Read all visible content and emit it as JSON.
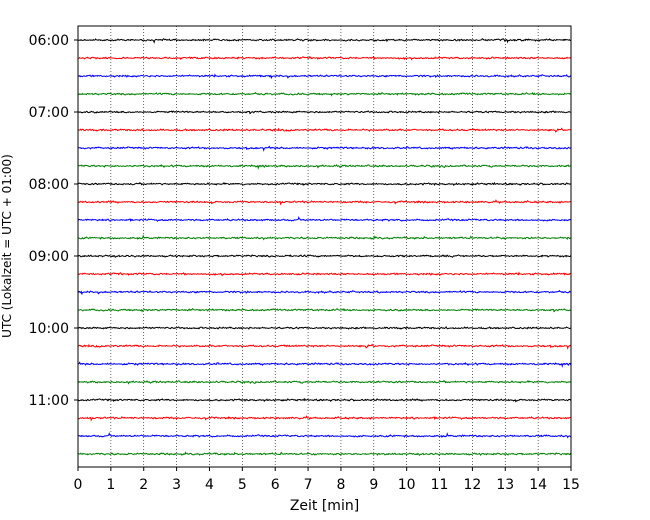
{
  "chart_data": {
    "type": "line",
    "title": "",
    "xlabel": "Zeit  [min]",
    "ylabel": "UTC (Lokalzeit = UTC + 01:00)",
    "xlim": [
      0,
      15
    ],
    "x_ticks": [
      "0",
      "1",
      "2",
      "3",
      "4",
      "5",
      "6",
      "7",
      "8",
      "9",
      "10",
      "11",
      "12",
      "13",
      "14",
      "15"
    ],
    "y_ticks": [
      "06:00",
      "07:00",
      "08:00",
      "09:00",
      "10:00",
      "11:00"
    ],
    "grid": "vertical dotted at each minute",
    "legend": "none",
    "trace_interval_min": 15,
    "trace_colors": [
      "#000000",
      "#ff0000",
      "#0000ff",
      "#008000"
    ],
    "traces": [
      {
        "start": "06:00",
        "color": "#000000"
      },
      {
        "start": "06:15",
        "color": "#ff0000"
      },
      {
        "start": "06:30",
        "color": "#0000ff"
      },
      {
        "start": "06:45",
        "color": "#008000"
      },
      {
        "start": "07:00",
        "color": "#000000"
      },
      {
        "start": "07:15",
        "color": "#ff0000"
      },
      {
        "start": "07:30",
        "color": "#0000ff"
      },
      {
        "start": "07:45",
        "color": "#008000"
      },
      {
        "start": "08:00",
        "color": "#000000"
      },
      {
        "start": "08:15",
        "color": "#ff0000"
      },
      {
        "start": "08:30",
        "color": "#0000ff"
      },
      {
        "start": "08:45",
        "color": "#008000"
      },
      {
        "start": "09:00",
        "color": "#000000"
      },
      {
        "start": "09:15",
        "color": "#ff0000"
      },
      {
        "start": "09:30",
        "color": "#0000ff"
      },
      {
        "start": "09:45",
        "color": "#008000"
      },
      {
        "start": "10:00",
        "color": "#000000"
      },
      {
        "start": "10:15",
        "color": "#ff0000"
      },
      {
        "start": "10:30",
        "color": "#0000ff"
      },
      {
        "start": "10:45",
        "color": "#008000"
      },
      {
        "start": "11:00",
        "color": "#000000"
      },
      {
        "start": "11:15",
        "color": "#ff0000"
      },
      {
        "start": "11:30",
        "color": "#0000ff"
      },
      {
        "start": "11:45",
        "color": "#008000"
      }
    ]
  }
}
